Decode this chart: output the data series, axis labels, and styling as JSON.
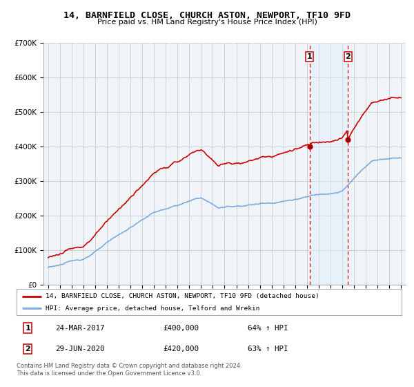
{
  "title": "14, BARNFIELD CLOSE, CHURCH ASTON, NEWPORT, TF10 9FD",
  "subtitle": "Price paid vs. HM Land Registry's House Price Index (HPI)",
  "ylim": [
    0,
    700000
  ],
  "yticks": [
    0,
    100000,
    200000,
    300000,
    400000,
    500000,
    600000,
    700000
  ],
  "ytick_labels": [
    "£0",
    "£100K",
    "£200K",
    "£300K",
    "£400K",
    "£500K",
    "£600K",
    "£700K"
  ],
  "hpi_color": "#7aaadd",
  "price_color": "#cc0000",
  "grid_color": "#cccccc",
  "bg_color": "#f0f4f8",
  "transaction1_year": 2017.22,
  "transaction1_price": 400000,
  "transaction2_year": 2020.5,
  "transaction2_price": 420000,
  "transaction1_label": "1",
  "transaction2_label": "2",
  "transaction1_date": "24-MAR-2017",
  "transaction1_amount": "£400,000",
  "transaction1_hpi": "64% ↑ HPI",
  "transaction2_date": "29-JUN-2020",
  "transaction2_amount": "£420,000",
  "transaction2_hpi": "63% ↑ HPI",
  "legend_line1": "14, BARNFIELD CLOSE, CHURCH ASTON, NEWPORT, TF10 9FD (detached house)",
  "legend_line2": "HPI: Average price, detached house, Telford and Wrekin",
  "footer": "Contains HM Land Registry data © Crown copyright and database right 2024.\nThis data is licensed under the Open Government Licence v3.0.",
  "highlight_color": "#ddeeff",
  "seed": 123
}
